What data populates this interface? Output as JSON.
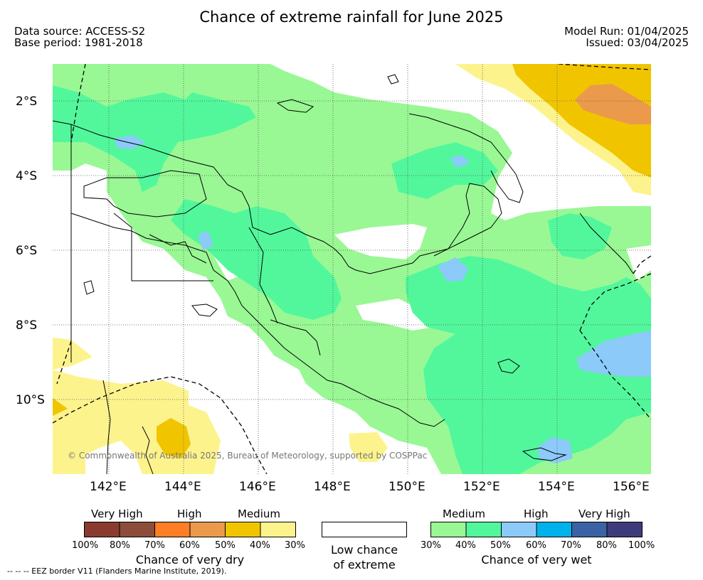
{
  "header": {
    "title": "Chance of extreme rainfall for June 2025",
    "data_source": "Data source: ACCESS-S2",
    "base_period": "Base period: 1981-2018",
    "model_run": "Model Run: 01/04/2025",
    "issued": "Issued: 03/04/2025"
  },
  "map": {
    "lat_labels": [
      "2°S",
      "4°S",
      "6°S",
      "8°S",
      "10°S"
    ],
    "lon_labels": [
      "142°E",
      "144°E",
      "146°E",
      "148°E",
      "150°E",
      "152°E",
      "154°E",
      "156°E"
    ],
    "copyright": "© Commonwealth of Australia 2025, Bureau of Meteorology, supported by COSPPac",
    "colors": {
      "land_outline": "#000000",
      "wet_medium_30": "#99f894",
      "wet_medium_40": "#52f79c",
      "wet_high_50": "#8ccafa",
      "dry_medium_40": "#f0c500",
      "dry_medium_30": "#fdf38d",
      "dry_high_60": "#eb9a4c",
      "low_chance": "#ffffff"
    }
  },
  "legend": {
    "dry": {
      "heads": [
        "Very High",
        "High",
        "Medium"
      ],
      "colors": [
        "#8b3a2f",
        "#8c4e3b",
        "#fd7e24",
        "#eb9a4c",
        "#f0c500",
        "#fdf38d"
      ],
      "ticks": [
        "100%",
        "80%",
        "70%",
        "60%",
        "50%",
        "40%",
        "30%"
      ],
      "caption": "Chance of very dry"
    },
    "low": {
      "caption_line1": "Low chance",
      "caption_line2": "of extreme"
    },
    "wet": {
      "heads": [
        "Medium",
        "High",
        "Very High"
      ],
      "colors": [
        "#99f894",
        "#52f79c",
        "#8ccafa",
        "#00b1ec",
        "#3a63a5",
        "#3e3b7d"
      ],
      "ticks": [
        "30%",
        "40%",
        "50%",
        "60%",
        "70%",
        "80%",
        "100%"
      ],
      "caption": "Chance of very wet"
    }
  },
  "footnote": "--  --  -- EEZ border V11 (Flanders Marine Institute, 2019)."
}
